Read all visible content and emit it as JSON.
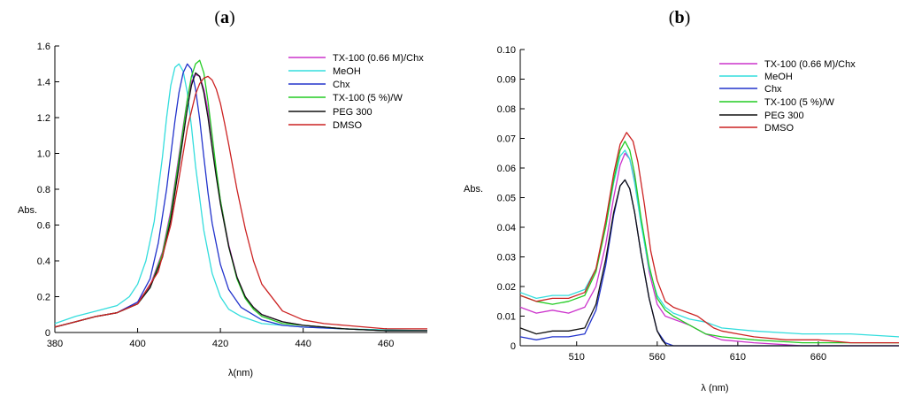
{
  "chart_data": [
    {
      "type": "line",
      "panel_label": "a",
      "xlabel": "λ(nm)",
      "ylabel": "Abs.",
      "xlim": [
        380,
        470
      ],
      "ylim": [
        0,
        1.6
      ],
      "xticks": [
        "380",
        "400",
        "420",
        "440",
        "460"
      ],
      "yticks": [
        "0",
        "0.2",
        "0.4",
        "0.6",
        "0.8",
        "1.0",
        "1.2",
        "1.4",
        "1.6"
      ],
      "legend_position": "top-right",
      "series": [
        {
          "name": "TX-100 (0.66 M)/Chx",
          "color": "#cc33cc",
          "x": [
            380,
            385,
            390,
            395,
            400,
            403,
            406,
            408,
            410,
            411,
            412,
            413,
            414,
            415,
            416,
            417,
            418,
            419,
            420,
            422,
            424,
            426,
            428,
            430,
            435,
            440,
            445,
            450,
            455,
            460,
            470
          ],
          "y": [
            0.03,
            0.06,
            0.09,
            0.11,
            0.17,
            0.26,
            0.45,
            0.68,
            0.99,
            1.15,
            1.3,
            1.4,
            1.44,
            1.43,
            1.36,
            1.24,
            1.08,
            0.9,
            0.74,
            0.49,
            0.31,
            0.2,
            0.14,
            0.1,
            0.06,
            0.04,
            0.03,
            0.02,
            0.015,
            0.01,
            0.01
          ]
        },
        {
          "name": "MeOH",
          "color": "#33dddd",
          "x": [
            380,
            385,
            390,
            395,
            398,
            400,
            402,
            404,
            406,
            407,
            408,
            409,
            410,
            411,
            412,
            413,
            414,
            416,
            418,
            420,
            422,
            425,
            430,
            435,
            440,
            450,
            460,
            470
          ],
          "y": [
            0.05,
            0.09,
            0.12,
            0.15,
            0.2,
            0.27,
            0.4,
            0.62,
            0.98,
            1.2,
            1.38,
            1.48,
            1.5,
            1.46,
            1.34,
            1.15,
            0.93,
            0.57,
            0.33,
            0.2,
            0.13,
            0.09,
            0.05,
            0.04,
            0.03,
            0.02,
            0.015,
            0.01
          ]
        },
        {
          "name": "Chx",
          "color": "#2233cc",
          "x": [
            380,
            385,
            390,
            395,
            400,
            403,
            405,
            407,
            409,
            410,
            411,
            412,
            413,
            414,
            415,
            416,
            417,
            418,
            420,
            422,
            425,
            430,
            435,
            440,
            450,
            460,
            470
          ],
          "y": [
            0.03,
            0.06,
            0.09,
            0.11,
            0.17,
            0.3,
            0.5,
            0.8,
            1.18,
            1.34,
            1.45,
            1.5,
            1.47,
            1.36,
            1.19,
            0.98,
            0.78,
            0.61,
            0.38,
            0.24,
            0.14,
            0.07,
            0.04,
            0.03,
            0.02,
            0.01,
            0.01
          ]
        },
        {
          "name": "TX-100 (5 %)/W",
          "color": "#22cc22",
          "x": [
            380,
            385,
            390,
            395,
            400,
            403,
            406,
            408,
            410,
            412,
            413,
            414,
            415,
            416,
            417,
            418,
            419,
            420,
            422,
            424,
            426,
            428,
            430,
            435,
            440,
            445,
            450,
            460,
            470
          ],
          "y": [
            0.03,
            0.06,
            0.09,
            0.11,
            0.16,
            0.25,
            0.44,
            0.66,
            0.97,
            1.3,
            1.43,
            1.5,
            1.52,
            1.45,
            1.29,
            1.1,
            0.91,
            0.74,
            0.48,
            0.3,
            0.19,
            0.13,
            0.09,
            0.05,
            0.04,
            0.03,
            0.02,
            0.01,
            0.01
          ]
        },
        {
          "name": "PEG 300",
          "color": "#111111",
          "x": [
            380,
            385,
            390,
            395,
            400,
            403,
            406,
            408,
            410,
            412,
            413,
            414,
            415,
            416,
            417,
            418,
            419,
            420,
            422,
            424,
            426,
            428,
            430,
            435,
            440,
            445,
            450,
            460,
            470
          ],
          "y": [
            0.03,
            0.06,
            0.09,
            0.11,
            0.16,
            0.25,
            0.42,
            0.63,
            0.93,
            1.25,
            1.38,
            1.45,
            1.43,
            1.34,
            1.2,
            1.03,
            0.87,
            0.72,
            0.48,
            0.31,
            0.2,
            0.14,
            0.1,
            0.06,
            0.04,
            0.03,
            0.02,
            0.01,
            0.01
          ]
        },
        {
          "name": "DMSO",
          "color": "#cc2222",
          "x": [
            380,
            385,
            390,
            395,
            400,
            405,
            408,
            410,
            412,
            414,
            415,
            416,
            417,
            418,
            419,
            420,
            421,
            422,
            424,
            426,
            428,
            430,
            435,
            440,
            445,
            450,
            460,
            470
          ],
          "y": [
            0.03,
            0.06,
            0.09,
            0.11,
            0.16,
            0.34,
            0.6,
            0.86,
            1.14,
            1.33,
            1.39,
            1.42,
            1.43,
            1.41,
            1.36,
            1.28,
            1.17,
            1.05,
            0.8,
            0.58,
            0.4,
            0.27,
            0.12,
            0.07,
            0.05,
            0.04,
            0.02,
            0.02
          ]
        }
      ]
    },
    {
      "type": "line",
      "panel_label": "b",
      "xlabel": "λ (nm)",
      "ylabel": "Abs.",
      "xlim": [
        475,
        710
      ],
      "ylim": [
        0,
        0.1
      ],
      "xticks": [
        "510",
        "560",
        "610",
        "660"
      ],
      "yticks": [
        "0",
        "0.01",
        "0.02",
        "0.03",
        "0.04",
        "0.05",
        "0.06",
        "0.07",
        "0.08",
        "0.09",
        "0.10"
      ],
      "legend_position": "top-right",
      "series": [
        {
          "name": "TX-100 (0.66 M)/Chx",
          "color": "#cc33cc",
          "x": [
            475,
            485,
            495,
            505,
            515,
            522,
            528,
            533,
            537,
            540,
            543,
            546,
            550,
            555,
            560,
            565,
            570,
            575,
            580,
            590,
            600,
            620,
            650,
            680,
            710
          ],
          "y": [
            0.013,
            0.011,
            0.012,
            0.011,
            0.013,
            0.02,
            0.034,
            0.05,
            0.061,
            0.065,
            0.063,
            0.056,
            0.042,
            0.025,
            0.014,
            0.01,
            0.009,
            0.008,
            0.007,
            0.004,
            0.002,
            0.001,
            0.0,
            0.0,
            0.0
          ]
        },
        {
          "name": "MeOH",
          "color": "#33dddd",
          "x": [
            475,
            485,
            495,
            505,
            515,
            522,
            528,
            533,
            537,
            540,
            543,
            546,
            550,
            555,
            560,
            565,
            570,
            580,
            590,
            600,
            620,
            650,
            680,
            710
          ],
          "y": [
            0.018,
            0.016,
            0.017,
            0.017,
            0.019,
            0.026,
            0.04,
            0.055,
            0.064,
            0.066,
            0.063,
            0.055,
            0.041,
            0.026,
            0.017,
            0.013,
            0.011,
            0.009,
            0.008,
            0.006,
            0.005,
            0.004,
            0.004,
            0.003
          ]
        },
        {
          "name": "Chx",
          "color": "#2233cc",
          "x": [
            475,
            485,
            495,
            505,
            515,
            522,
            528,
            533,
            537,
            540,
            543,
            546,
            550,
            555,
            560,
            565,
            570,
            580,
            600,
            650,
            710
          ],
          "y": [
            0.003,
            0.002,
            0.003,
            0.003,
            0.004,
            0.012,
            0.027,
            0.044,
            0.054,
            0.056,
            0.053,
            0.045,
            0.031,
            0.016,
            0.005,
            0.001,
            0.0,
            0.0,
            0.0,
            0.0,
            0.0
          ]
        },
        {
          "name": "TX-100 (5 %)/W",
          "color": "#22cc22",
          "x": [
            475,
            485,
            495,
            505,
            515,
            522,
            528,
            533,
            537,
            540,
            543,
            546,
            550,
            555,
            560,
            565,
            570,
            580,
            590,
            600,
            620,
            650,
            680,
            710
          ],
          "y": [
            0.017,
            0.015,
            0.014,
            0.015,
            0.017,
            0.025,
            0.04,
            0.056,
            0.066,
            0.069,
            0.066,
            0.058,
            0.043,
            0.027,
            0.016,
            0.012,
            0.01,
            0.007,
            0.004,
            0.003,
            0.002,
            0.001,
            0.001,
            0.001
          ]
        },
        {
          "name": "PEG 300",
          "color": "#111111",
          "x": [
            475,
            485,
            495,
            505,
            515,
            522,
            528,
            533,
            537,
            540,
            543,
            546,
            550,
            555,
            560,
            563,
            566,
            570,
            580,
            600,
            650,
            710
          ],
          "y": [
            0.006,
            0.004,
            0.005,
            0.005,
            0.006,
            0.014,
            0.029,
            0.045,
            0.054,
            0.056,
            0.053,
            0.045,
            0.031,
            0.016,
            0.005,
            0.002,
            0.0,
            0.0,
            0.0,
            0.0,
            0.0,
            0.0
          ]
        },
        {
          "name": "DMSO",
          "color": "#cc2222",
          "x": [
            475,
            485,
            495,
            505,
            515,
            522,
            528,
            533,
            537,
            541,
            545,
            548,
            552,
            556,
            560,
            565,
            570,
            575,
            580,
            585,
            590,
            595,
            600,
            610,
            620,
            640,
            660,
            680,
            710
          ],
          "y": [
            0.017,
            0.015,
            0.016,
            0.016,
            0.018,
            0.026,
            0.042,
            0.058,
            0.068,
            0.072,
            0.069,
            0.062,
            0.048,
            0.032,
            0.022,
            0.015,
            0.013,
            0.012,
            0.011,
            0.01,
            0.008,
            0.006,
            0.005,
            0.004,
            0.003,
            0.002,
            0.002,
            0.001,
            0.001
          ]
        }
      ]
    }
  ]
}
